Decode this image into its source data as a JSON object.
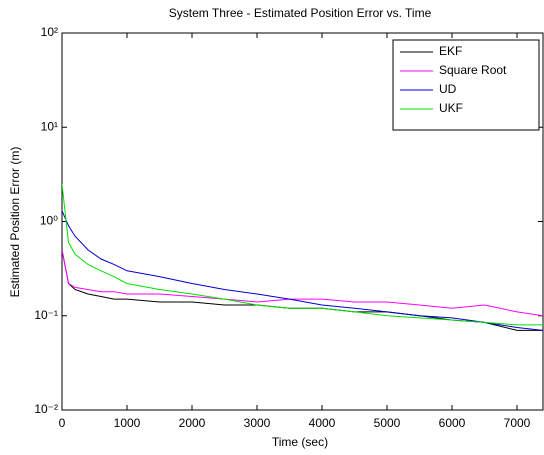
{
  "chart_data": {
    "type": "line",
    "title": "System Three - Estimated Position Error vs. Time",
    "x_label": "Time (sec)",
    "y_label": "Estimated Position Error (m)",
    "x": [
      0,
      100,
      200,
      400,
      600,
      800,
      1000,
      1500,
      2000,
      2500,
      3000,
      3500,
      4000,
      4500,
      5000,
      5500,
      6000,
      6500,
      7000,
      7400
    ],
    "series": [
      {
        "name": "EKF",
        "color": "#000000",
        "values": [
          0.5,
          0.22,
          0.19,
          0.17,
          0.16,
          0.15,
          0.15,
          0.14,
          0.14,
          0.13,
          0.13,
          0.12,
          0.12,
          0.11,
          0.11,
          0.1,
          0.09,
          0.085,
          0.07,
          0.07
        ]
      },
      {
        "name": "Square Root",
        "color": "#ff00ff",
        "values": [
          0.5,
          0.22,
          0.2,
          0.19,
          0.18,
          0.18,
          0.17,
          0.17,
          0.16,
          0.15,
          0.14,
          0.15,
          0.15,
          0.14,
          0.14,
          0.13,
          0.12,
          0.13,
          0.11,
          0.1
        ]
      },
      {
        "name": "UD",
        "color": "#0000cc",
        "values": [
          1.3,
          0.9,
          0.7,
          0.5,
          0.4,
          0.35,
          0.3,
          0.26,
          0.22,
          0.19,
          0.17,
          0.15,
          0.13,
          0.12,
          0.11,
          0.1,
          0.095,
          0.085,
          0.075,
          0.07
        ]
      },
      {
        "name": "UKF",
        "color": "#00e000",
        "values": [
          2.5,
          0.6,
          0.45,
          0.35,
          0.3,
          0.26,
          0.22,
          0.19,
          0.17,
          0.15,
          0.13,
          0.12,
          0.12,
          0.11,
          0.1,
          0.095,
          0.09,
          0.085,
          0.08,
          0.08
        ]
      }
    ],
    "xlim": [
      0,
      7400
    ],
    "xticks": [
      0,
      1000,
      2000,
      3000,
      4000,
      5000,
      6000,
      7000
    ],
    "ylim": [
      0.01,
      100
    ],
    "yticks": [
      {
        "value": 0.01,
        "label": "10⁻²"
      },
      {
        "value": 0.1,
        "label": "10⁻¹"
      },
      {
        "value": 1,
        "label": "10⁰"
      },
      {
        "value": 10,
        "label": "10¹"
      },
      {
        "value": 100,
        "label": "10²"
      }
    ],
    "y_scale": "log",
    "legend": "top-right"
  }
}
